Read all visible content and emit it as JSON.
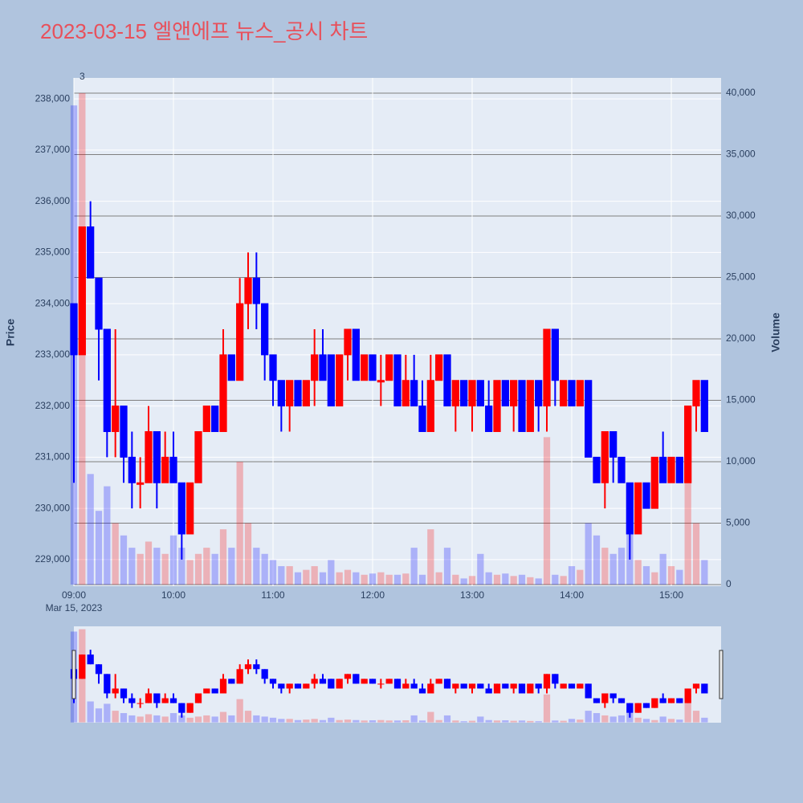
{
  "chart_data": {
    "type": "candlestick",
    "title": "2023-03-15 엘앤에프 뉴스_공시 차트",
    "y_title": "Price",
    "y2_title": "Volume",
    "x_date_label": "Mar 15, 2023",
    "x": [
      "09:00",
      "09:05",
      "09:10",
      "09:15",
      "09:20",
      "09:25",
      "09:30",
      "09:35",
      "09:40",
      "09:45",
      "09:50",
      "09:55",
      "10:00",
      "10:05",
      "10:10",
      "10:15",
      "10:20",
      "10:25",
      "10:30",
      "10:35",
      "10:40",
      "10:45",
      "10:50",
      "10:55",
      "11:00",
      "11:05",
      "11:10",
      "11:15",
      "11:20",
      "11:25",
      "11:30",
      "11:35",
      "11:40",
      "11:45",
      "11:50",
      "11:55",
      "12:00",
      "12:05",
      "12:10",
      "12:15",
      "12:20",
      "12:25",
      "12:30",
      "12:35",
      "12:40",
      "12:45",
      "12:50",
      "12:55",
      "13:00",
      "13:05",
      "13:10",
      "13:15",
      "13:20",
      "13:25",
      "13:30",
      "13:35",
      "13:40",
      "13:45",
      "13:50",
      "13:55",
      "14:00",
      "14:05",
      "14:10",
      "14:15",
      "14:20",
      "14:25",
      "14:30",
      "14:35",
      "14:40",
      "14:45",
      "14:50",
      "14:55",
      "15:00",
      "15:05",
      "15:10",
      "15:15",
      "15:20"
    ],
    "open": [
      234000,
      233000,
      235500,
      234500,
      233500,
      231500,
      232000,
      231000,
      230500,
      230500,
      231500,
      230500,
      231000,
      230500,
      229500,
      230500,
      231500,
      232000,
      231500,
      233000,
      232500,
      234000,
      234500,
      234000,
      233000,
      232500,
      232000,
      232500,
      232000,
      232500,
      233000,
      233000,
      232000,
      233000,
      233500,
      232500,
      233000,
      232500,
      232500,
      233000,
      232000,
      232500,
      232000,
      231500,
      232500,
      233000,
      232000,
      232500,
      232000,
      232500,
      232000,
      231500,
      232500,
      232000,
      232500,
      231500,
      232500,
      232000,
      233500,
      232000,
      232500,
      232000,
      232500,
      231000,
      230500,
      231500,
      231000,
      230500,
      229500,
      230500,
      230000,
      231000,
      230500,
      231000,
      230500,
      232000,
      232500
    ],
    "high": [
      234000,
      235500,
      236000,
      234500,
      233500,
      233500,
      232000,
      231500,
      231000,
      232000,
      231500,
      231500,
      231500,
      230500,
      230500,
      231500,
      232000,
      232000,
      233500,
      233000,
      234500,
      235000,
      235000,
      234000,
      233000,
      232500,
      232500,
      232500,
      232500,
      233500,
      233500,
      233000,
      233000,
      233500,
      233500,
      233000,
      233000,
      233000,
      233000,
      233000,
      233000,
      233000,
      232500,
      233000,
      233000,
      233000,
      232500,
      232500,
      232500,
      232500,
      232500,
      232500,
      232500,
      232500,
      232500,
      232500,
      232500,
      233500,
      233500,
      232500,
      232500,
      232500,
      232500,
      231000,
      231500,
      231500,
      231000,
      230500,
      230500,
      230500,
      231000,
      231500,
      231000,
      231000,
      232000,
      232500,
      232500
    ],
    "low": [
      230500,
      233000,
      234500,
      232500,
      231000,
      231000,
      230500,
      230000,
      230000,
      230500,
      230000,
      230500,
      230500,
      229000,
      229500,
      230500,
      231500,
      231500,
      231500,
      232500,
      232500,
      233500,
      233500,
      232500,
      232000,
      231500,
      231500,
      232000,
      232000,
      232000,
      232500,
      232000,
      232000,
      232500,
      232500,
      232500,
      232500,
      232000,
      232500,
      232000,
      232000,
      232000,
      231500,
      231500,
      232500,
      232000,
      231500,
      232000,
      231500,
      232000,
      231500,
      231500,
      232000,
      231500,
      231500,
      231500,
      231500,
      231500,
      232000,
      232000,
      232000,
      232000,
      231000,
      230500,
      230000,
      230500,
      230500,
      229000,
      229500,
      230000,
      230000,
      230500,
      230500,
      230500,
      230500,
      231500,
      231500
    ],
    "close": [
      233000,
      235500,
      234500,
      233500,
      231500,
      232000,
      231000,
      230500,
      230500,
      231500,
      230500,
      231000,
      230500,
      229500,
      230500,
      231500,
      232000,
      231500,
      233000,
      232500,
      234000,
      234500,
      234000,
      233000,
      232500,
      232000,
      232500,
      232000,
      232500,
      233000,
      232500,
      232000,
      233000,
      233500,
      232500,
      233000,
      232500,
      232500,
      233000,
      232000,
      232500,
      232000,
      231500,
      232500,
      233000,
      232000,
      232500,
      232000,
      232500,
      232000,
      231500,
      232500,
      232000,
      232500,
      231500,
      232500,
      232000,
      233500,
      232500,
      232500,
      232000,
      232500,
      231000,
      230500,
      231500,
      231000,
      230500,
      229500,
      230500,
      230000,
      231000,
      230500,
      231000,
      230500,
      232000,
      232500,
      231500
    ],
    "volume": [
      39000,
      40000,
      9000,
      6000,
      8000,
      5000,
      4000,
      3000,
      2500,
      3500,
      3000,
      2500,
      4000,
      3000,
      2000,
      2500,
      3000,
      2500,
      4500,
      3000,
      10000,
      5000,
      3000,
      2500,
      2000,
      1500,
      1500,
      1000,
      1200,
      1500,
      1000,
      2000,
      1000,
      1200,
      1000,
      800,
      900,
      1000,
      800,
      800,
      900,
      3000,
      800,
      4500,
      1000,
      3000,
      800,
      500,
      700,
      2500,
      1000,
      800,
      900,
      700,
      800,
      600,
      500,
      12000,
      800,
      700,
      1500,
      1200,
      5000,
      4000,
      3000,
      2500,
      3000,
      6500,
      2000,
      1500,
      1000,
      2500,
      1500,
      1200,
      12000,
      5000,
      2000
    ],
    "increasing_color": "#ff0000",
    "decreasing_color": "#0000ff",
    "annotations": [
      {
        "x": "09:05",
        "text": "3"
      }
    ],
    "xlim": [
      "09:00",
      "15:30"
    ],
    "xticks": [
      "09:00",
      "10:00",
      "11:00",
      "12:00",
      "13:00",
      "14:00",
      "15:00"
    ],
    "ylim": [
      228480,
      238410
    ],
    "yticks": [
      {
        "value": 229000,
        "label": "229,000"
      },
      {
        "value": 230000,
        "label": "230,000"
      },
      {
        "value": 231000,
        "label": "231,000"
      },
      {
        "value": 232000,
        "label": "232,000"
      },
      {
        "value": 233000,
        "label": "233,000"
      },
      {
        "value": 234000,
        "label": "234,000"
      },
      {
        "value": 235000,
        "label": "235,000"
      },
      {
        "value": 236000,
        "label": "236,000"
      },
      {
        "value": 237000,
        "label": "237,000"
      },
      {
        "value": 238000,
        "label": "238,000"
      }
    ],
    "y2lim": [
      -130,
      41240
    ],
    "y2ticks": [
      0,
      {
        "value": 5000,
        "label": "5,000"
      },
      {
        "value": 10000,
        "label": "10,000"
      },
      {
        "value": 15000,
        "label": "15,000"
      },
      {
        "value": 20000,
        "label": "20,000"
      },
      {
        "value": 25000,
        "label": "25,000"
      },
      {
        "value": 30000,
        "label": "30,000"
      },
      {
        "value": 35000,
        "label": "35,000"
      },
      {
        "value": 40000,
        "label": "40,000"
      }
    ],
    "grid": true,
    "range_slider": true
  }
}
